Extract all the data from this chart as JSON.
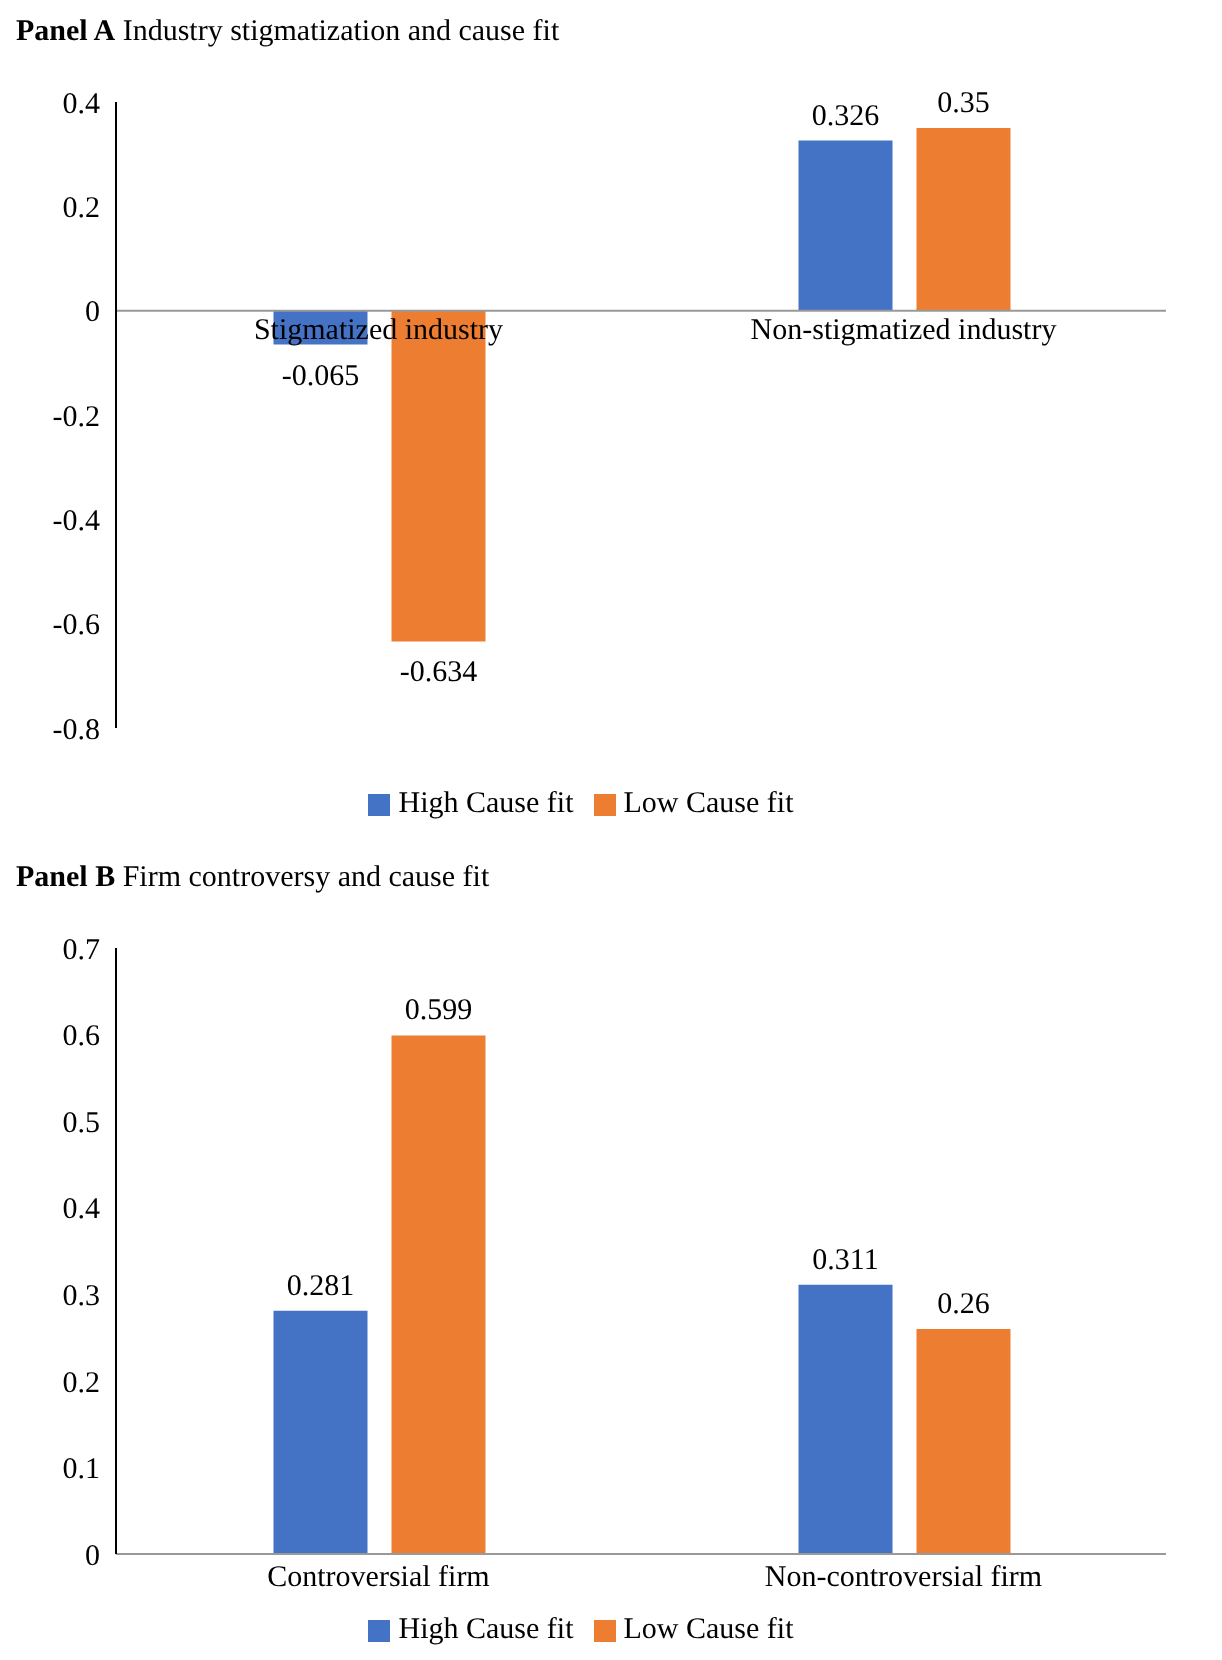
{
  "chart_data": [
    {
      "type": "bar",
      "title": "Panel A Industry stigmatization and cause fit",
      "categories": [
        "Stigmatized industry",
        "Non-stigmatized industry"
      ],
      "series": [
        {
          "name": "High Cause fit",
          "color": "#4472c4",
          "values": [
            -0.065,
            0.326
          ]
        },
        {
          "name": "Low Cause fit",
          "color": "#ed7d31",
          "values": [
            -0.634,
            0.35
          ]
        }
      ],
      "ylim": [
        -0.8,
        0.4
      ],
      "yticks": [
        -0.8,
        -0.6,
        -0.4,
        -0.2,
        0,
        0.2,
        0.4
      ],
      "grid": false,
      "legend": "bottom",
      "data_labels": true
    },
    {
      "type": "bar",
      "title": "Panel B Firm controversy and cause fit",
      "categories": [
        "Controversial firm",
        "Non-controversial firm"
      ],
      "series": [
        {
          "name": "High Cause fit",
          "color": "#4472c4",
          "values": [
            0.281,
            0.311
          ]
        },
        {
          "name": "Low Cause fit",
          "color": "#ed7d31",
          "values": [
            0.599,
            0.26
          ]
        }
      ],
      "ylim": [
        0,
        0.7
      ],
      "yticks": [
        0,
        0.1,
        0.2,
        0.3,
        0.4,
        0.5,
        0.6,
        0.7
      ],
      "grid": false,
      "legend": "bottom",
      "data_labels": true
    }
  ]
}
